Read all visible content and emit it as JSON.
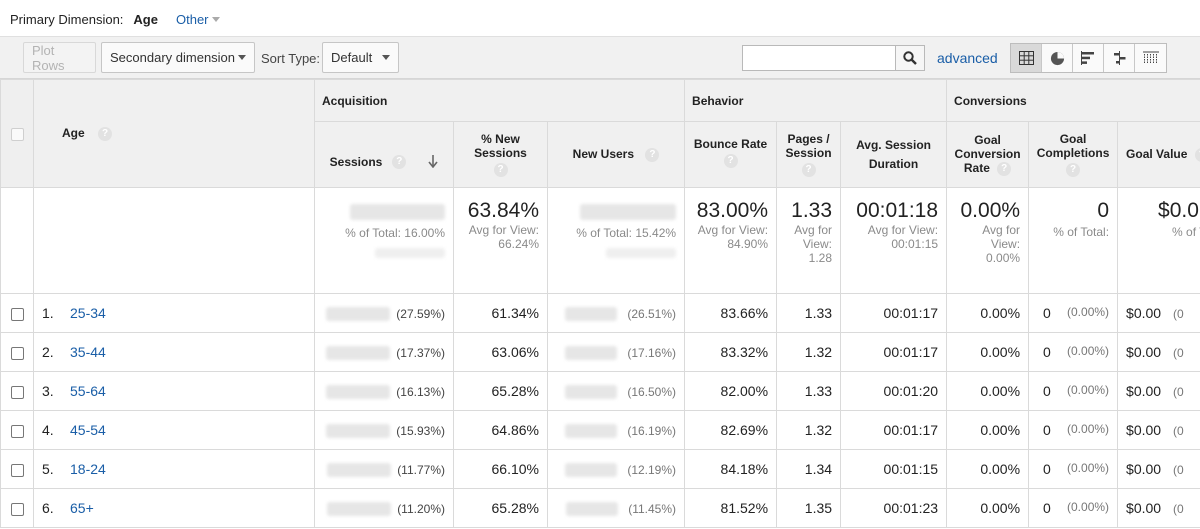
{
  "primary_dimension": {
    "label": "Primary Dimension:",
    "selected": "Age",
    "other": "Other"
  },
  "toolbar": {
    "plot_rows": "Plot Rows",
    "secondary_dimension": "Secondary dimension",
    "sort_type_label": "Sort Type:",
    "sort_type_value": "Default",
    "search_placeholder": "",
    "advanced": "advanced",
    "view_buttons": [
      "table-view-icon",
      "pie-view-icon",
      "performance-view-icon",
      "comparison-view-icon",
      "pivot-view-icon"
    ]
  },
  "table": {
    "dimension_header": "Age",
    "groups": {
      "acquisition": "Acquisition",
      "behavior": "Behavior",
      "conversions": "Conversions"
    },
    "columns": {
      "sessions": "Sessions",
      "pct_new_sessions": "% New Sessions",
      "new_users": "New Users",
      "bounce_rate": "Bounce Rate",
      "pages_session": "Pages / Session",
      "avg_session_duration": "Avg. Session Duration",
      "goal_conversion_rate": "Goal Conversion Rate",
      "goal_completions": "Goal Completions",
      "goal_value": "Goal Value"
    },
    "totals": {
      "sessions_sub": "% of Total: 16.00%",
      "pct_new_sessions": "63.84%",
      "pct_new_sessions_sub": "Avg for View: 66.24%",
      "new_users_sub": "% of Total: 15.42%",
      "bounce_rate": "83.00%",
      "bounce_rate_sub": "Avg for View: 84.90%",
      "pages_session": "1.33",
      "pages_session_sub": "Avg for View: 1.28",
      "avg_session_duration": "00:01:18",
      "avg_session_duration_sub": "Avg for View: 00:01:15",
      "goal_conversion_rate": "0.00%",
      "goal_conversion_rate_sub": "Avg for View: 0.00%",
      "goal_completions": "0",
      "goal_completions_sub": "% of Total:",
      "goal_value": "$0.0",
      "goal_value_sub": "% of To"
    },
    "rows": [
      {
        "num": "1.",
        "age": "25-34",
        "sessions_pct": "(27.59%)",
        "pct_new_sessions": "61.34%",
        "new_users_pct": "(26.51%)",
        "bounce_rate": "83.66%",
        "pages_session": "1.33",
        "duration": "00:01:17",
        "conv_rate": "0.00%",
        "completions": "0",
        "completions_pct": "(0.00%)",
        "goal_value": "$0.00",
        "goal_value_pct": "(0"
      },
      {
        "num": "2.",
        "age": "35-44",
        "sessions_pct": "(17.37%)",
        "pct_new_sessions": "63.06%",
        "new_users_pct": "(17.16%)",
        "bounce_rate": "83.32%",
        "pages_session": "1.32",
        "duration": "00:01:17",
        "conv_rate": "0.00%",
        "completions": "0",
        "completions_pct": "(0.00%)",
        "goal_value": "$0.00",
        "goal_value_pct": "(0"
      },
      {
        "num": "3.",
        "age": "55-64",
        "sessions_pct": "(16.13%)",
        "pct_new_sessions": "65.28%",
        "new_users_pct": "(16.50%)",
        "bounce_rate": "82.00%",
        "pages_session": "1.33",
        "duration": "00:01:20",
        "conv_rate": "0.00%",
        "completions": "0",
        "completions_pct": "(0.00%)",
        "goal_value": "$0.00",
        "goal_value_pct": "(0"
      },
      {
        "num": "4.",
        "age": "45-54",
        "sessions_pct": "(15.93%)",
        "pct_new_sessions": "64.86%",
        "new_users_pct": "(16.19%)",
        "bounce_rate": "82.69%",
        "pages_session": "1.32",
        "duration": "00:01:17",
        "conv_rate": "0.00%",
        "completions": "0",
        "completions_pct": "(0.00%)",
        "goal_value": "$0.00",
        "goal_value_pct": "(0"
      },
      {
        "num": "5.",
        "age": "18-24",
        "sessions_pct": "(11.77%)",
        "pct_new_sessions": "66.10%",
        "new_users_pct": "(12.19%)",
        "bounce_rate": "84.18%",
        "pages_session": "1.34",
        "duration": "00:01:15",
        "conv_rate": "0.00%",
        "completions": "0",
        "completions_pct": "(0.00%)",
        "goal_value": "$0.00",
        "goal_value_pct": "(0"
      },
      {
        "num": "6.",
        "age": "65+",
        "sessions_pct": "(11.20%)",
        "pct_new_sessions": "65.28%",
        "new_users_pct": "(11.45%)",
        "bounce_rate": "81.52%",
        "pages_session": "1.35",
        "duration": "00:01:23",
        "conv_rate": "0.00%",
        "completions": "0",
        "completions_pct": "(0.00%)",
        "goal_value": "$0.00",
        "goal_value_pct": "(0"
      }
    ]
  }
}
